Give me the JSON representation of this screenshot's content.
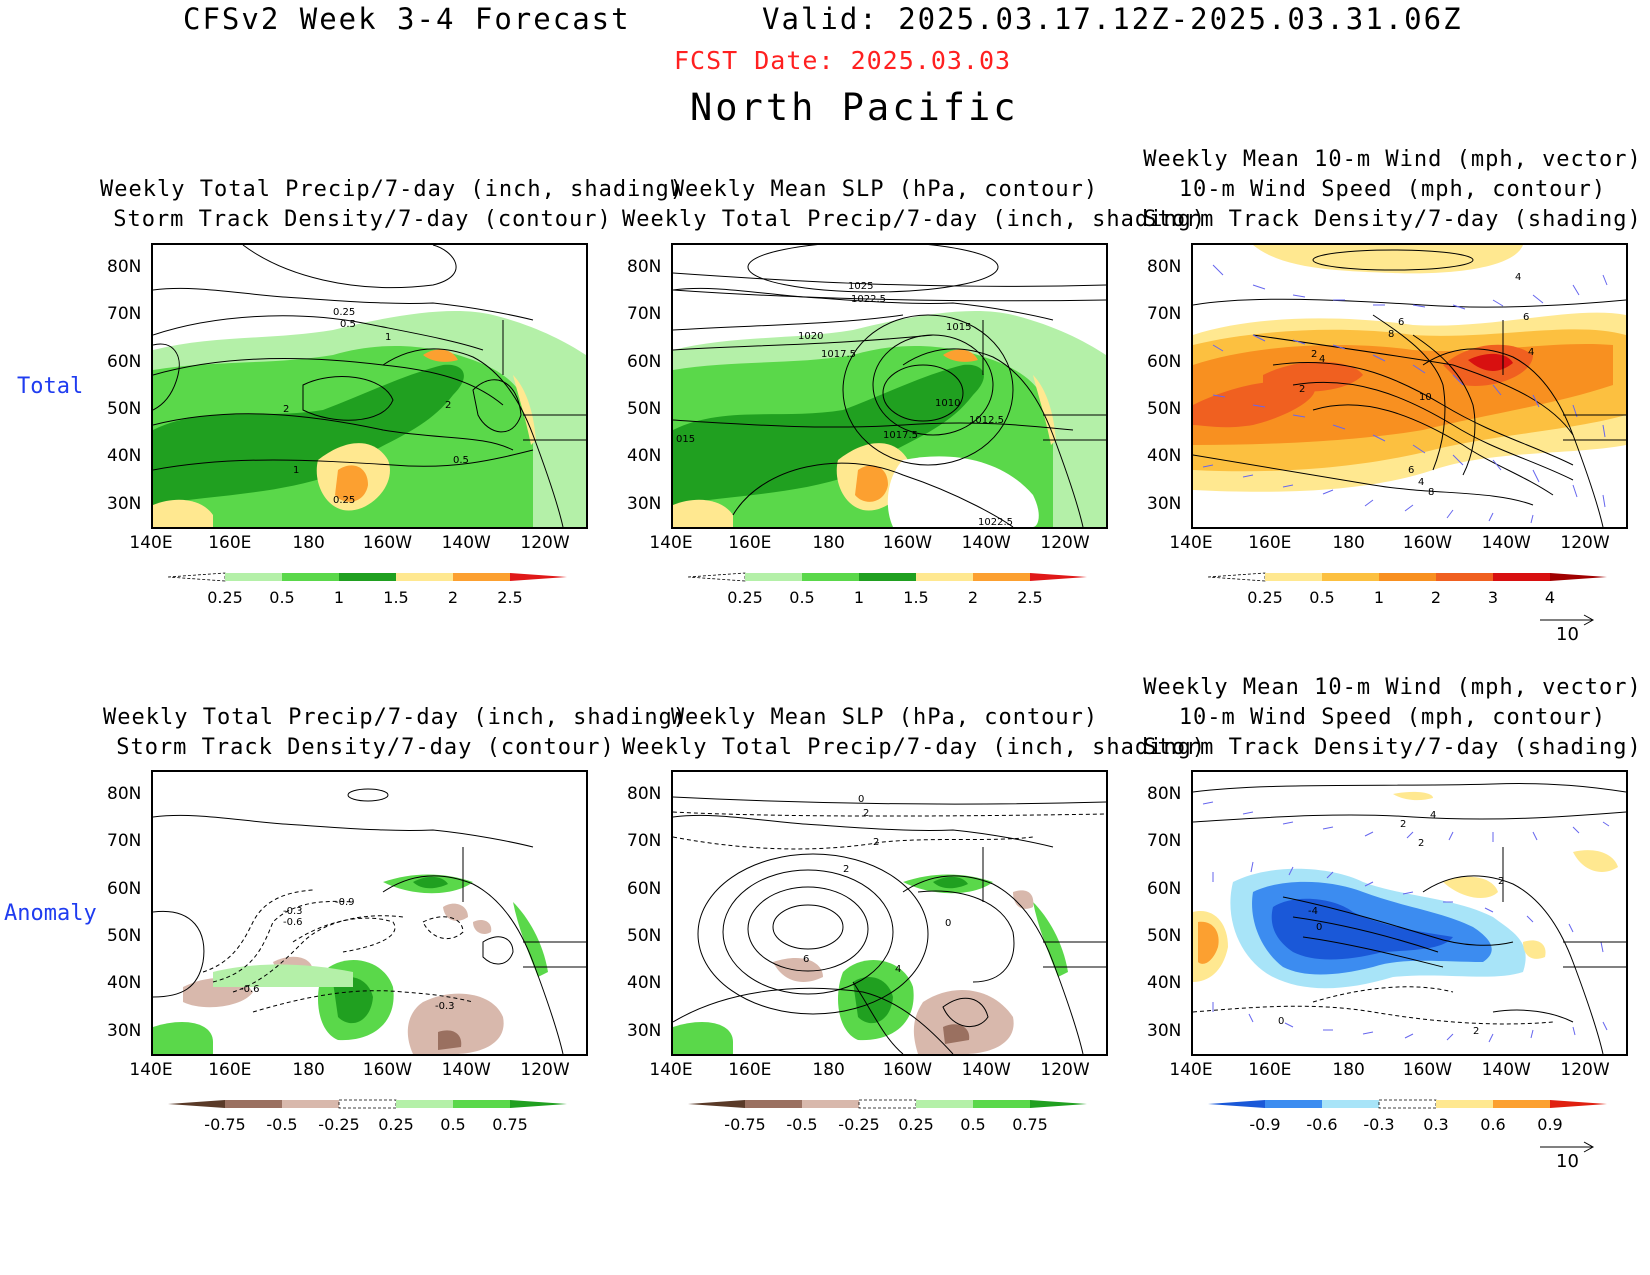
{
  "header": {
    "model_title": "CFSv2 Week 3-4 Forecast",
    "valid": "Valid: 2025.03.17.12Z-2025.03.31.06Z",
    "fcst_date": "FCST Date: 2025.03.03",
    "region": "North Pacific"
  },
  "rows": {
    "total": "Total",
    "anomaly": "Anomaly"
  },
  "titles": {
    "p1_l1": "Weekly Total Precip/7-day (inch, shading)",
    "p1_l2": "Storm Track Density/7-day (contour)",
    "p2_l1": "Weekly Mean SLP (hPa, contour)",
    "p2_l2": "Weekly Total Precip/7-day (inch, shading)",
    "p3_l1": "Weekly Mean 10-m Wind (mph, vector)",
    "p3_l2": "10-m Wind Speed (mph, contour)",
    "p3_l3": "Storm Track Density/7-day (shading)"
  },
  "axes": {
    "lat": [
      "80N",
      "70N",
      "60N",
      "50N",
      "40N",
      "30N"
    ],
    "lon": [
      "140E",
      "160E",
      "180",
      "160W",
      "140W",
      "120W"
    ]
  },
  "legends": {
    "precip_total": [
      "0.25",
      "0.5",
      "1",
      "1.5",
      "2",
      "2.5"
    ],
    "track_total": [
      "0.25",
      "0.5",
      "1",
      "2",
      "3",
      "4"
    ],
    "precip_anom": [
      "-0.75",
      "-0.5",
      "-0.25",
      "0.25",
      "0.5",
      "0.75"
    ],
    "track_anom": [
      "-0.9",
      "-0.6",
      "-0.3",
      "0.3",
      "0.6",
      "0.9"
    ]
  },
  "colors": {
    "precip_total": [
      "#ffffff",
      "#b4f0a8",
      "#5ad84a",
      "#20a020",
      "#ffe890",
      "#fca030",
      "#e01818"
    ],
    "track_total": [
      "#ffffff",
      "#ffe890",
      "#fcc040",
      "#f89020",
      "#f06020",
      "#d81010",
      "#a00000"
    ],
    "precip_anom": [
      "#5a3a28",
      "#9a7060",
      "#d8b8ac",
      "#ffffff",
      "#b4f0a8",
      "#5ad84a",
      "#20a020"
    ],
    "track_anom": [
      "#1a58d8",
      "#3c8cf0",
      "#a8e4f8",
      "#ffffff",
      "#ffe890",
      "#fca030",
      "#e02010"
    ]
  },
  "contour_labels": {
    "p1_total": [
      "0.25",
      "0.5",
      "1",
      "2",
      "2",
      "1",
      "0.5",
      "0.25"
    ],
    "p2_total": [
      "1025",
      "1022.5",
      "1020",
      "1017.5",
      "1015",
      "1010",
      "1012.5",
      "1017.5",
      "015",
      "1022.5"
    ],
    "p3_total": [
      "4",
      "6",
      "8",
      "2",
      "4",
      "2",
      "10",
      "4",
      "6",
      "8",
      "4",
      "6"
    ],
    "p1_anom": [
      "-0.3",
      "-0.6",
      "-0.9",
      "-0.6",
      "-0.3"
    ],
    "p2_anom": [
      "0",
      "2",
      "2",
      "2",
      "6",
      "4",
      "0"
    ],
    "p3_anom": [
      "4",
      "2",
      "2",
      "-4",
      "0",
      "2",
      "2",
      "0"
    ]
  },
  "vector_ref": "10"
}
